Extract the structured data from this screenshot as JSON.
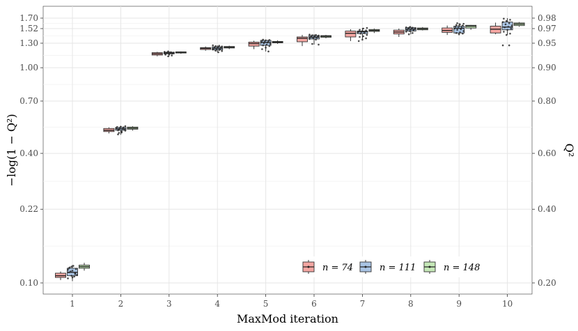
{
  "chart_data": {
    "type": "boxplot",
    "xlabel": "MaxMod iteration",
    "ylabel_left": "−log(1 − Q²)",
    "ylabel_right": "Q²",
    "categories": [
      "1",
      "2",
      "3",
      "4",
      "5",
      "6",
      "7",
      "8",
      "9",
      "10"
    ],
    "y_transform": "log(-log(1 - Q^2))",
    "left_ticks": [
      "0.10",
      "0.22",
      "0.40",
      "0.70",
      "1.00",
      "1.30",
      "1.52",
      "1.70"
    ],
    "right_ticks": [
      "0.20",
      "0.40",
      "0.60",
      "0.80",
      "0.90",
      "0.95",
      "0.97",
      "0.98"
    ],
    "colors": {
      "n74": "#f4a6a2",
      "n111": "#a9c4e4",
      "n148": "#c5e8b7",
      "points": "#2b2b2b"
    },
    "series": [
      {
        "name": "n = 74",
        "label": "n = 74",
        "boxes": [
          {
            "min": 0.103,
            "q1": 0.106,
            "median": 0.108,
            "q3": 0.111,
            "max": 0.113
          },
          {
            "min": 0.495,
            "q1": 0.505,
            "median": 0.512,
            "q3": 0.522,
            "max": 0.528
          },
          {
            "min": 1.13,
            "q1": 1.145,
            "median": 1.16,
            "q3": 1.175,
            "max": 1.185
          },
          {
            "min": 1.2,
            "q1": 1.215,
            "median": 1.23,
            "q3": 1.24,
            "max": 1.255
          },
          {
            "min": 1.22,
            "q1": 1.26,
            "median": 1.295,
            "q3": 1.315,
            "max": 1.335
          },
          {
            "min": 1.26,
            "q1": 1.32,
            "median": 1.37,
            "q3": 1.39,
            "max": 1.42
          },
          {
            "min": 1.33,
            "q1": 1.39,
            "median": 1.445,
            "q3": 1.48,
            "max": 1.51
          },
          {
            "min": 1.39,
            "q1": 1.435,
            "median": 1.465,
            "q3": 1.495,
            "max": 1.52
          },
          {
            "min": 1.42,
            "q1": 1.46,
            "median": 1.49,
            "q3": 1.53,
            "max": 1.57
          },
          {
            "min": 1.43,
            "q1": 1.45,
            "median": 1.51,
            "q3": 1.56,
            "max": 1.62
          }
        ],
        "points": [
          [],
          [],
          [],
          [],
          [],
          [],
          [],
          [],
          [],
          []
        ]
      },
      {
        "name": "n = 111",
        "label": "n = 111",
        "boxes": [
          {
            "min": 0.102,
            "q1": 0.108,
            "median": 0.112,
            "q3": 0.117,
            "max": 0.121
          },
          {
            "min": 0.488,
            "q1": 0.512,
            "median": 0.52,
            "q3": 0.528,
            "max": 0.536
          },
          {
            "min": 1.13,
            "q1": 1.16,
            "median": 1.17,
            "q3": 1.18,
            "max": 1.19
          },
          {
            "min": 1.18,
            "q1": 1.21,
            "median": 1.23,
            "q3": 1.25,
            "max": 1.27
          },
          {
            "min": 1.19,
            "q1": 1.27,
            "median": 1.31,
            "q3": 1.34,
            "max": 1.35
          },
          {
            "min": 1.28,
            "q1": 1.36,
            "median": 1.385,
            "q3": 1.41,
            "max": 1.43
          },
          {
            "min": 1.36,
            "q1": 1.44,
            "median": 1.47,
            "q3": 1.48,
            "max": 1.53
          },
          {
            "min": 1.43,
            "q1": 1.48,
            "median": 1.51,
            "q3": 1.535,
            "max": 1.56
          },
          {
            "min": 1.43,
            "q1": 1.45,
            "median": 1.525,
            "q3": 1.56,
            "max": 1.61
          },
          {
            "min": 1.42,
            "q1": 1.5,
            "median": 1.545,
            "q3": 1.63,
            "max": 1.7
          }
        ],
        "points": [
          [
            0.105,
            0.108,
            0.11,
            0.112,
            0.114,
            0.116,
            0.118,
            0.12,
            0.109,
            0.113,
            0.107,
            0.115,
            0.119,
            0.111,
            0.117,
            0.106
          ],
          [
            0.49,
            0.5,
            0.51,
            0.515,
            0.52,
            0.522,
            0.525,
            0.528,
            0.53,
            0.532,
            0.518,
            0.512,
            0.506,
            0.535,
            0.498
          ],
          [
            1.13,
            1.14,
            1.15,
            1.16,
            1.165,
            1.17,
            1.172,
            1.175,
            1.178,
            1.18,
            1.185,
            1.19,
            1.168,
            1.162,
            1.155
          ],
          [
            1.18,
            1.195,
            1.2,
            1.21,
            1.215,
            1.22,
            1.225,
            1.23,
            1.235,
            1.24,
            1.245,
            1.25,
            1.255,
            1.26,
            1.265,
            1.27
          ],
          [
            1.19,
            1.22,
            1.24,
            1.26,
            1.27,
            1.28,
            1.29,
            1.3,
            1.31,
            1.315,
            1.32,
            1.33,
            1.335,
            1.34,
            1.345,
            1.35
          ],
          [
            1.28,
            1.29,
            1.35,
            1.36,
            1.37,
            1.38,
            1.385,
            1.39,
            1.395,
            1.4,
            1.405,
            1.41,
            1.415,
            1.42,
            1.425
          ],
          [
            1.33,
            1.35,
            1.37,
            1.39,
            1.4,
            1.42,
            1.44,
            1.45,
            1.46,
            1.465,
            1.47,
            1.475,
            1.48,
            1.49,
            1.5,
            1.52,
            1.53
          ],
          [
            1.43,
            1.45,
            1.47,
            1.48,
            1.49,
            1.5,
            1.505,
            1.51,
            1.515,
            1.52,
            1.525,
            1.53,
            1.535,
            1.54,
            1.545
          ],
          [
            1.43,
            1.44,
            1.45,
            1.46,
            1.48,
            1.5,
            1.51,
            1.52,
            1.53,
            1.54,
            1.55,
            1.56,
            1.57,
            1.58,
            1.59,
            1.6,
            1.61
          ],
          [
            1.27,
            1.27,
            1.42,
            1.44,
            1.47,
            1.5,
            1.52,
            1.54,
            1.55,
            1.57,
            1.59,
            1.61,
            1.63,
            1.65,
            1.67,
            1.69
          ]
        ]
      },
      {
        "name": "n = 148",
        "label": "n = 148",
        "boxes": [
          {
            "min": 0.114,
            "q1": 0.117,
            "median": 0.119,
            "q3": 0.121,
            "max": 0.124
          },
          {
            "min": 0.51,
            "q1": 0.518,
            "median": 0.524,
            "q3": 0.53,
            "max": 0.535
          },
          {
            "min": 1.16,
            "q1": 1.17,
            "median": 1.18,
            "q3": 1.185,
            "max": 1.19
          },
          {
            "min": 1.22,
            "q1": 1.235,
            "median": 1.245,
            "q3": 1.255,
            "max": 1.265
          },
          {
            "min": 1.29,
            "q1": 1.305,
            "median": 1.315,
            "q3": 1.325,
            "max": 1.34
          },
          {
            "min": 1.37,
            "q1": 1.385,
            "median": 1.4,
            "q3": 1.41,
            "max": 1.42
          },
          {
            "min": 1.45,
            "q1": 1.475,
            "median": 1.49,
            "q3": 1.505,
            "max": 1.52
          },
          {
            "min": 1.49,
            "q1": 1.5,
            "median": 1.515,
            "q3": 1.53,
            "max": 1.545
          },
          {
            "min": 1.5,
            "q1": 1.53,
            "median": 1.56,
            "q3": 1.575,
            "max": 1.58
          },
          {
            "min": 1.55,
            "q1": 1.57,
            "median": 1.595,
            "q3": 1.615,
            "max": 1.63
          }
        ],
        "points": [
          [],
          [],
          [],
          [],
          [],
          [],
          [],
          [],
          [],
          []
        ]
      }
    ],
    "legend": {
      "position": "bottom-right",
      "entries": [
        "n = 74",
        "n = 111",
        "n = 148"
      ]
    }
  }
}
